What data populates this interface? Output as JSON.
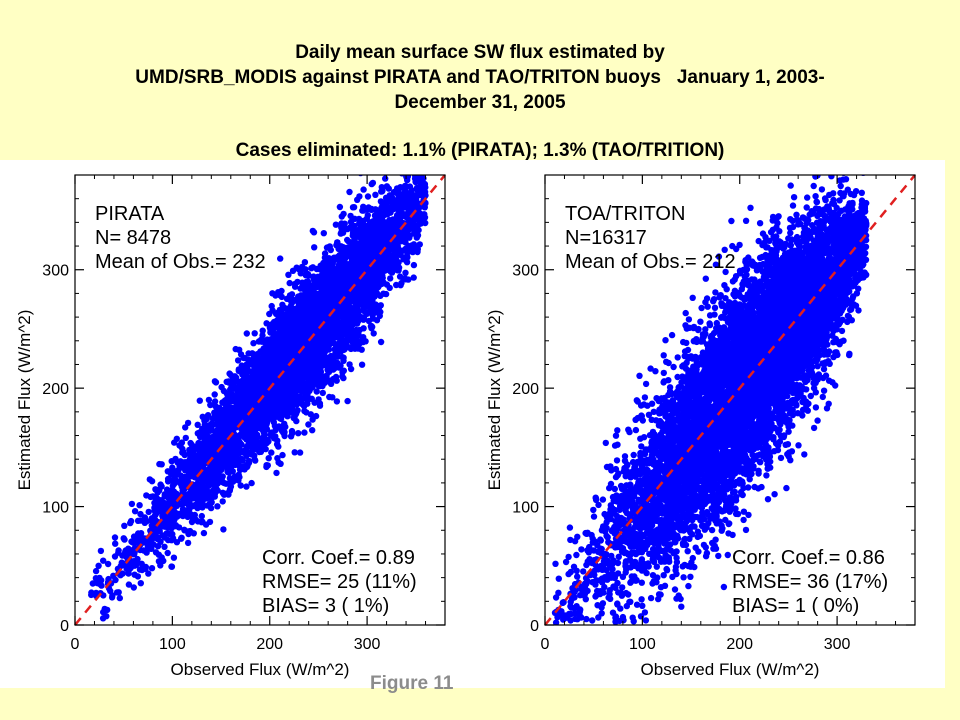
{
  "title_lines": [
    "Daily mean surface SW flux estimated by",
    "UMD/SRB_MODIS against PIRATA and TAO/TRITON buoys   January 1, 2003-",
    "December 31, 2005"
  ],
  "subtitle": "Cases eliminated: 1.1% (PIRATA); 1.3% (TAO/TRITION)",
  "figure_label": "Figure 11",
  "colors": {
    "background": "#FFFFC4",
    "points": "#0000FF",
    "reference_line": "#E02020"
  },
  "chart_data": [
    {
      "type": "scatter",
      "xlabel": "Observed Flux (W/m^2)",
      "ylabel": "Estimated Flux (W/m^2)",
      "xlim": [
        0,
        380
      ],
      "ylim": [
        0,
        380
      ],
      "xticks": [
        0,
        100,
        200,
        300
      ],
      "yticks": [
        0,
        100,
        200,
        300
      ],
      "reference_line": "1:1 dashed red",
      "grid": false,
      "annotations_top": [
        "PIRATA",
        "N= 8478",
        "Mean of Obs.= 232"
      ],
      "annotations_bottom": [
        "Corr. Coef.= 0.89",
        "RMSE= 25 (11%)",
        "BIAS=  3 ( 1%)"
      ],
      "point_cloud": {
        "n": 8478,
        "mean_obs": 232,
        "corr": 0.89,
        "rmse": 25,
        "bias": 3,
        "x_range": [
          15,
          360
        ],
        "spread": [
          [
            20,
            14
          ],
          [
            100,
            20
          ],
          [
            200,
            25
          ],
          [
            300,
            28
          ],
          [
            355,
            16
          ]
        ]
      }
    },
    {
      "type": "scatter",
      "xlabel": "Observed Flux (W/m^2)",
      "ylabel": "Estimated Flux (W/m^2)",
      "xlim": [
        0,
        380
      ],
      "ylim": [
        0,
        380
      ],
      "xticks": [
        0,
        100,
        200,
        300
      ],
      "yticks": [
        0,
        100,
        200,
        300
      ],
      "reference_line": "1:1 dashed red",
      "grid": false,
      "annotations_top": [
        "TOA/TRITON",
        "N=16317",
        "Mean of Obs.= 212"
      ],
      "annotations_bottom": [
        "Corr. Coef.= 0.86",
        "RMSE= 36 (17%)",
        "BIAS=  1 ( 0%)"
      ],
      "point_cloud": {
        "n": 16317,
        "mean_obs": 212,
        "corr": 0.86,
        "rmse": 36,
        "bias": 1,
        "x_range": [
          10,
          330
        ],
        "spread": [
          [
            20,
            18
          ],
          [
            100,
            38
          ],
          [
            200,
            44
          ],
          [
            300,
            34
          ],
          [
            330,
            18
          ]
        ]
      }
    }
  ]
}
